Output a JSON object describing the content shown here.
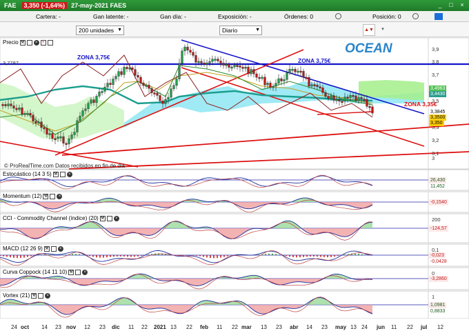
{
  "window": {
    "symbol": "FAE",
    "price_badge": "3,350 (-1,64%)",
    "date": "27-may-2021 FAES",
    "buttons": [
      "_",
      "□",
      "×"
    ]
  },
  "orderbar": {
    "cartera": "Cartera: -",
    "ganlatente": "Gan latente: -",
    "gandia": "Gan día: -",
    "exposicion": "Exposición: -",
    "ordenes": "Órdenes: 0",
    "posicion": "Posición: 0"
  },
  "toolbar": {
    "units": "200 unidades",
    "period": "Diario"
  },
  "price_panel": {
    "title": "Precio",
    "zones": {
      "upper_left": "ZONA 3,75€",
      "upper_right": "ZONA 3,75€",
      "lower": "ZONA 3,35€"
    },
    "watermark": "OCEAN",
    "source": "© ProRealTime.com  Datos recibidos en fin de dia",
    "left_value": "3,7787",
    "axis": [
      "3,9",
      "3,8",
      "3,7",
      "3,6",
      "3,5",
      "3,4",
      "3,3",
      "3,2",
      "3,1",
      "3"
    ],
    "tags": [
      {
        "text": "3,4963",
        "color": "#4fbf4f"
      },
      {
        "text": "3,4430",
        "color": "#2a9e8e"
      },
      {
        "text": "3,3845",
        "color": "#ffffff"
      },
      {
        "text": "3,3500",
        "color": "#ffd21a"
      },
      {
        "text": "3,350",
        "color": "#ffcc00"
      }
    ]
  },
  "indicators": [
    {
      "title": "Estocástico (14 3 5)",
      "axis": [
        "",
        ""
      ],
      "tags": [
        "26,430",
        "11,452"
      ]
    },
    {
      "title": "Momentum (12)",
      "axis": [
        ""
      ],
      "tags": [
        "-0,1540"
      ]
    },
    {
      "title": "CCI - Commodity Channel (índice) (20)",
      "axis": [
        "200",
        "0"
      ],
      "tags": [
        "-124,57"
      ]
    },
    {
      "title": "MACD (12 26 9)",
      "axis": [
        "0,1",
        "0"
      ],
      "tags": [
        "-0,023",
        "-0,0428"
      ]
    },
    {
      "title": "Curva Coppock (14 11 10)",
      "axis": [
        "0"
      ],
      "tags": [
        "-3,2860"
      ]
    },
    {
      "title": "Vortex (21)",
      "axis": [
        "1"
      ],
      "tags": [
        "1,0981",
        "0,8833"
      ]
    }
  ],
  "xaxis": [
    "24",
    "oct",
    "14",
    "23",
    "nov",
    "12",
    "23",
    "dic",
    "11",
    "22",
    "2021",
    "13",
    "22",
    "feb",
    "11",
    "22",
    "mar",
    "13",
    "23",
    "abr",
    "14",
    "23",
    "may",
    "13",
    "24",
    "jun",
    "11",
    "22",
    "jul",
    "12"
  ],
  "colors": {
    "up": "#1fa04a",
    "down": "#c01818",
    "channel": "#1414c8",
    "support": "#dd1111"
  }
}
